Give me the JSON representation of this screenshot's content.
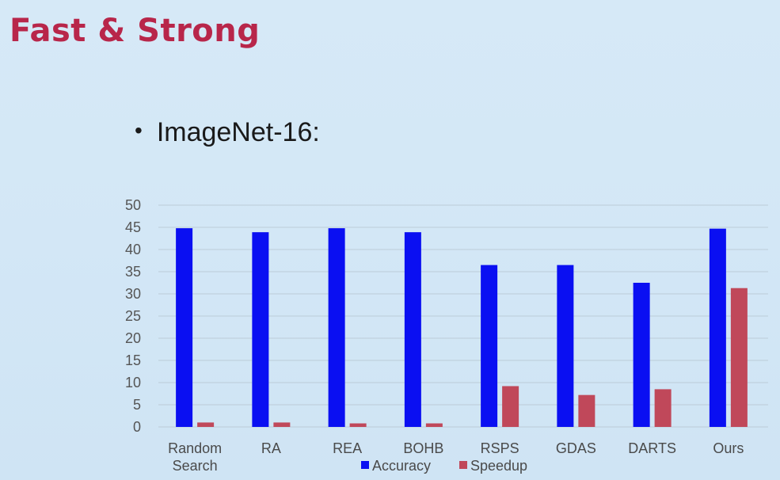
{
  "slide": {
    "title": "Fast & Strong",
    "bullet": "ImageNet-16:"
  },
  "chart_data": {
    "type": "bar",
    "categories": [
      [
        "Random",
        "Search"
      ],
      [
        "RA"
      ],
      [
        "REA"
      ],
      [
        "BOHB"
      ],
      [
        "RSPS"
      ],
      [
        "GDAS"
      ],
      [
        "DARTS"
      ],
      [
        "Ours"
      ]
    ],
    "series": [
      {
        "name": "Accuracy",
        "color": "#0a0ff2",
        "values": [
          44.8,
          43.9,
          44.8,
          43.9,
          36.5,
          36.5,
          32.5,
          44.7
        ]
      },
      {
        "name": "Speedup",
        "color": "#c0485a",
        "values": [
          1,
          1,
          0.8,
          0.8,
          9.2,
          7.2,
          8.5,
          31.3
        ]
      }
    ],
    "ylim": [
      0,
      50
    ],
    "yticks": [
      0,
      5,
      10,
      15,
      20,
      25,
      30,
      35,
      40,
      45,
      50
    ],
    "grid": true,
    "legend": "bottom-center",
    "title": "",
    "xlabel": "",
    "ylabel": ""
  }
}
